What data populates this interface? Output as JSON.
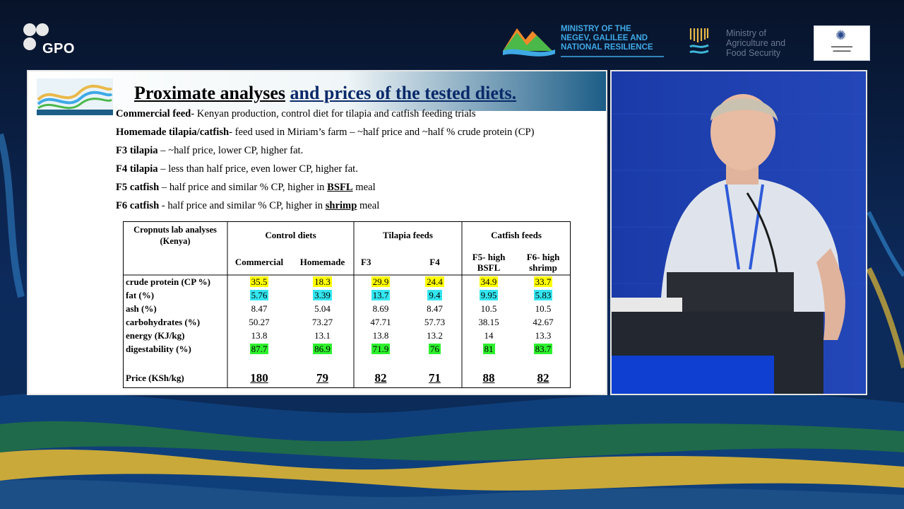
{
  "branding": {
    "gpo": "GPO",
    "ministry1": [
      "MINISTRY OF THE",
      "NEGEV, GALILEE AND",
      "NATIONAL RESILIENCE"
    ],
    "ministry2": [
      "Ministry of",
      "Agriculture and",
      "Food Security"
    ]
  },
  "slide": {
    "title_part1": "Proximate analyses",
    "title_part2": "and prices of the tested diets.",
    "bullets": [
      {
        "bold": "Commercial feed",
        "text": "- Kenyan production, control diet for tilapia and catfish feeding trials"
      },
      {
        "bold": "Homemade tilapia/catfish",
        "text": "- feed used in Miriam’s farm – ~half price and ~half % crude protein (CP)"
      },
      {
        "bold": "F3 tilapia",
        "text": " – ~half price, lower CP, higher fat."
      },
      {
        "bold": "F4 tilapia",
        "text": " – less than half price, even lower CP, higher fat."
      },
      {
        "bold": "F5 catfish",
        "text": " – half price and similar % CP, higher in ",
        "emph": "BSFL",
        "tail": " meal"
      },
      {
        "bold": "F6 catfish",
        "text": " - half price and similar % CP, higher in ",
        "emph": "shrimp",
        "tail": " meal"
      }
    ],
    "table": {
      "corner": "Cropnuts lab analyses (Kenya)",
      "groups": [
        "Control diets",
        "Tilapia feeds",
        "Catfish feeds"
      ],
      "columns": [
        "Commercial",
        "Homemade",
        "F3",
        "F4",
        "F5- high BSFL",
        "F6- high shrimp"
      ],
      "rows": [
        {
          "label": "crude protein (CP %)",
          "values": [
            "35.5",
            "18.3",
            "29.9",
            "24.4",
            "34.9",
            "33.7"
          ],
          "hl": "y"
        },
        {
          "label": "fat (%)",
          "values": [
            "5.76",
            "3.39",
            "13.7",
            "9.4",
            "9.95",
            "5.83"
          ],
          "hl": "c"
        },
        {
          "label": "ash (%)",
          "values": [
            "8.47",
            "5.04",
            "8.69",
            "8.47",
            "10.5",
            "10.5"
          ],
          "hl": ""
        },
        {
          "label": "carbohydrates (%)",
          "values": [
            "50.27",
            "73.27",
            "47.71",
            "57.73",
            "38.15",
            "42.67"
          ],
          "hl": ""
        },
        {
          "label": "energy (KJ/kg)",
          "values": [
            "13.8",
            "13.1",
            "13.8",
            "13.2",
            "14",
            "13.3"
          ],
          "hl": ""
        },
        {
          "label": "digestability (%)",
          "values": [
            "87.7",
            "86.9",
            "71.9",
            "76",
            "81",
            "83.7"
          ],
          "hl": "g"
        }
      ],
      "price_label": "Price (KSh/kg)",
      "prices": [
        "180",
        "79",
        "82",
        "71",
        "88",
        "82"
      ]
    }
  },
  "colors": {
    "highlight_yellow": "#ffff00",
    "highlight_cyan": "#33e6ef",
    "highlight_green": "#2ef02e",
    "stage_blue": "#1738a8"
  }
}
